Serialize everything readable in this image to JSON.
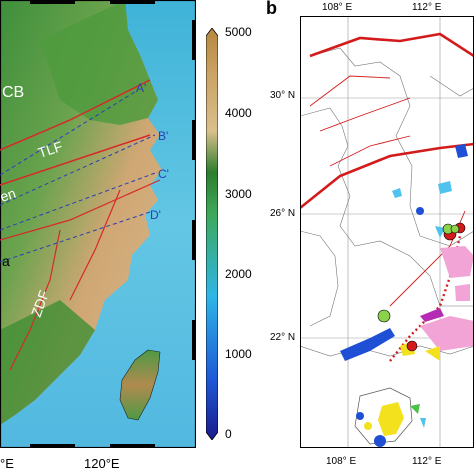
{
  "panel_a": {
    "colorbar": {
      "ticks": [
        "5000",
        "4000",
        "3000",
        "2000",
        "1000",
        "0"
      ],
      "colors": [
        "#1a1a8c",
        "#1f5ad6",
        "#2fb6e6",
        "#3ea85a",
        "#2e7d2e",
        "#d9c08c",
        "#c9a062",
        "#b5863f"
      ]
    },
    "map_labels": {
      "cb": "CB",
      "tlf": "TLF",
      "en": "en",
      "zdf": "ZDF",
      "a": "a",
      "a_prime": "A'",
      "b_prime": "B'",
      "c_prime": "C'",
      "d_prime": "D'"
    },
    "bottom_lon": [
      "°E",
      "120°E"
    ]
  },
  "panel_b": {
    "letter": "b",
    "top_lon": [
      "108° E",
      "112° E"
    ],
    "bottom_lon": [
      "108° E",
      "112° E"
    ],
    "lat": [
      "30° N",
      "26° N",
      "22° N"
    ]
  }
}
